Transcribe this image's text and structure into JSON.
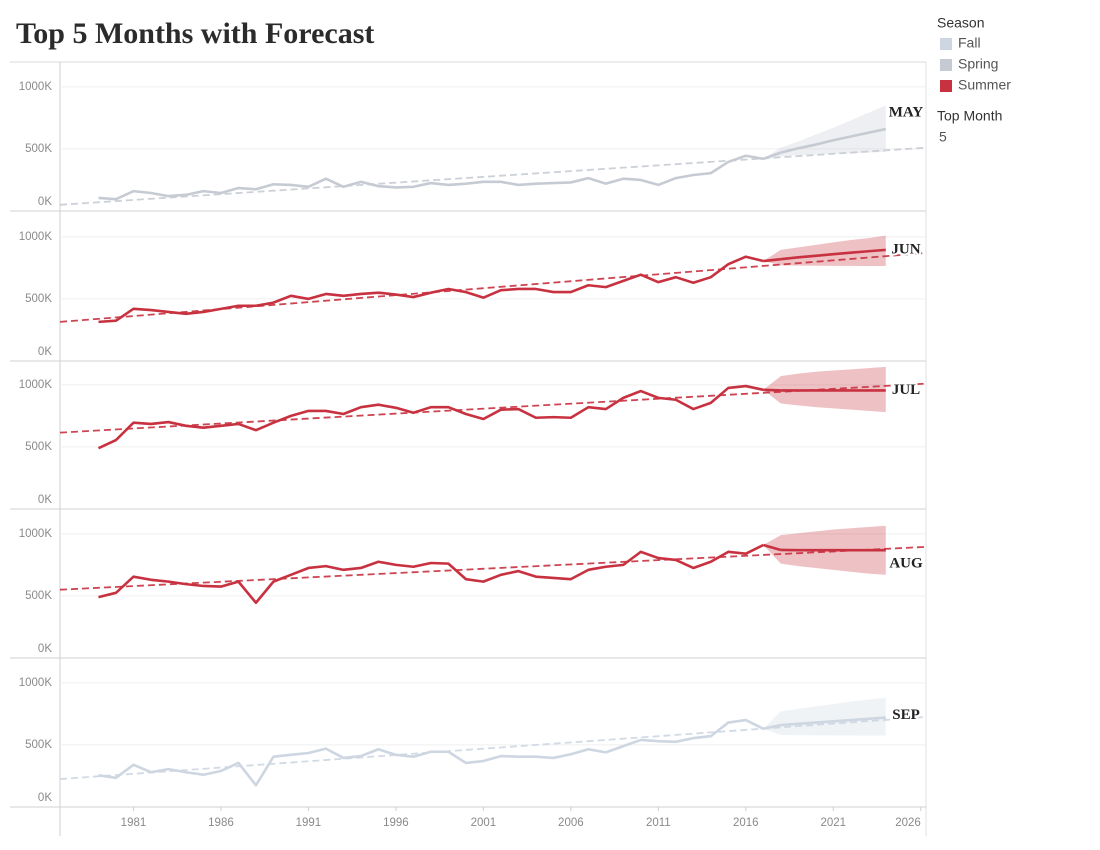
{
  "title": "Top 5 Months with Forecast",
  "legend": {
    "title": "Season",
    "items": [
      {
        "name": "Fall",
        "color": "#cdd6e1"
      },
      {
        "name": "Spring",
        "color": "#c6cbd3"
      },
      {
        "name": "Summer",
        "color": "#c8313f"
      }
    ]
  },
  "filter": {
    "title": "Top Month",
    "value": "5"
  },
  "chart_data": [
    {
      "type": "line",
      "label": "MAY",
      "color": "#c6cbd3",
      "x": [
        1979,
        1980,
        1981,
        1982,
        1983,
        1984,
        1985,
        1986,
        1987,
        1988,
        1989,
        1990,
        1991,
        1992,
        1993,
        1994,
        1995,
        1996,
        1997,
        1998,
        1999,
        2000,
        2001,
        2002,
        2003,
        2004,
        2005,
        2006,
        2007,
        2008,
        2009,
        2010,
        2011,
        2012,
        2013,
        2014,
        2015,
        2016,
        2017
      ],
      "values": [
        105000,
        95000,
        160000,
        145000,
        120000,
        130000,
        160000,
        145000,
        185000,
        175000,
        215000,
        210000,
        195000,
        260000,
        195000,
        235000,
        200000,
        190000,
        195000,
        225000,
        210000,
        220000,
        235000,
        235000,
        210000,
        220000,
        225000,
        230000,
        265000,
        220000,
        260000,
        250000,
        210000,
        265000,
        290000,
        305000,
        395000,
        445000,
        420000
      ],
      "forecast": {
        "x": [
          2018,
          2019,
          2020,
          2021,
          2022,
          2023,
          2024
        ],
        "values": [
          470000,
          505000,
          535000,
          570000,
          600000,
          630000,
          660000
        ],
        "upper": [
          510000,
          560000,
          615000,
          670000,
          730000,
          790000,
          850000
        ],
        "lower": [
          440000,
          450000,
          455000,
          460000,
          465000,
          470000,
          475000
        ]
      },
      "trend": {
        "x": [
          1976.8,
          2026.3
        ],
        "values": [
          50000,
          510000
        ]
      },
      "xlim": [
        1976.8,
        2026.3
      ],
      "ylim": [
        0,
        1200000
      ],
      "yticks": [
        {
          "value": 0,
          "label": "0K"
        },
        {
          "value": 500000,
          "label": "500K"
        },
        {
          "value": 1000000,
          "label": "1000K"
        }
      ]
    },
    {
      "type": "line",
      "label": "JUN",
      "color": "#c8313f",
      "x": [
        1979,
        1980,
        1981,
        1982,
        1983,
        1984,
        1985,
        1986,
        1987,
        1988,
        1989,
        1990,
        1991,
        1992,
        1993,
        1994,
        1995,
        1996,
        1997,
        1998,
        1999,
        2000,
        2001,
        2002,
        2003,
        2004,
        2005,
        2006,
        2007,
        2008,
        2009,
        2010,
        2011,
        2012,
        2013,
        2014,
        2015,
        2016,
        2017
      ],
      "values": [
        315000,
        325000,
        420000,
        410000,
        395000,
        380000,
        395000,
        420000,
        445000,
        445000,
        470000,
        525000,
        500000,
        540000,
        525000,
        540000,
        550000,
        535000,
        515000,
        550000,
        580000,
        555000,
        510000,
        570000,
        580000,
        580000,
        555000,
        555000,
        610000,
        595000,
        645000,
        695000,
        635000,
        675000,
        630000,
        675000,
        780000,
        840000,
        805000
      ],
      "forecast": {
        "x": [
          2018,
          2019,
          2020,
          2021,
          2022,
          2023,
          2024
        ],
        "values": [
          820000,
          835000,
          847000,
          860000,
          872000,
          884000,
          895000
        ],
        "upper": [
          895000,
          915000,
          935000,
          955000,
          975000,
          990000,
          1010000
        ],
        "lower": [
          770000,
          768000,
          767000,
          766000,
          766000,
          765000,
          765000
        ]
      },
      "trend": {
        "x": [
          1976.8,
          2026.3
        ],
        "values": [
          315000,
          870000
        ]
      },
      "xlim": [
        1976.8,
        2026.3
      ],
      "ylim": [
        0,
        1200000
      ],
      "yticks": [
        {
          "value": 0,
          "label": "0K"
        },
        {
          "value": 500000,
          "label": "500K"
        },
        {
          "value": 1000000,
          "label": "1000K"
        }
      ]
    },
    {
      "type": "line",
      "label": "JUL",
      "color": "#c8313f",
      "x": [
        1979,
        1980,
        1981,
        1982,
        1983,
        1984,
        1985,
        1986,
        1987,
        1988,
        1989,
        1990,
        1991,
        1992,
        1993,
        1994,
        1995,
        1996,
        1997,
        1998,
        1999,
        2000,
        2001,
        2002,
        2003,
        2004,
        2005,
        2006,
        2007,
        2008,
        2009,
        2010,
        2011,
        2012,
        2013,
        2014,
        2015,
        2016,
        2017
      ],
      "values": [
        490000,
        555000,
        695000,
        685000,
        700000,
        670000,
        655000,
        670000,
        685000,
        635000,
        695000,
        750000,
        790000,
        790000,
        765000,
        820000,
        840000,
        815000,
        775000,
        820000,
        820000,
        765000,
        725000,
        800000,
        805000,
        735000,
        740000,
        735000,
        820000,
        805000,
        895000,
        950000,
        895000,
        880000,
        805000,
        855000,
        975000,
        990000,
        960000
      ],
      "forecast": {
        "x": [
          2018,
          2019,
          2020,
          2021,
          2022,
          2023,
          2024
        ],
        "values": [
          955000,
          955000,
          955000,
          955000,
          955000,
          955000,
          955000
        ],
        "upper": [
          1070000,
          1090000,
          1105000,
          1115000,
          1125000,
          1135000,
          1145000
        ],
        "lower": [
          850000,
          835000,
          820000,
          810000,
          800000,
          790000,
          780000
        ]
      },
      "trend": {
        "x": [
          1976.8,
          2026.3
        ],
        "values": [
          615000,
          1010000
        ]
      },
      "xlim": [
        1976.8,
        2026.3
      ],
      "ylim": [
        0,
        1200000
      ],
      "yticks": [
        {
          "value": 0,
          "label": "0K"
        },
        {
          "value": 500000,
          "label": "500K"
        },
        {
          "value": 1000000,
          "label": "1000K"
        }
      ]
    },
    {
      "type": "line",
      "label": "AUG",
      "color": "#c8313f",
      "x": [
        1979,
        1980,
        1981,
        1982,
        1983,
        1984,
        1985,
        1986,
        1987,
        1988,
        1989,
        1990,
        1991,
        1992,
        1993,
        1994,
        1995,
        1996,
        1997,
        1998,
        1999,
        2000,
        2001,
        2002,
        2003,
        2004,
        2005,
        2006,
        2007,
        2008,
        2009,
        2010,
        2011,
        2012,
        2013,
        2014,
        2015,
        2016,
        2017
      ],
      "values": [
        490000,
        525000,
        655000,
        630000,
        615000,
        595000,
        580000,
        575000,
        615000,
        445000,
        615000,
        670000,
        725000,
        740000,
        710000,
        725000,
        775000,
        750000,
        735000,
        765000,
        760000,
        635000,
        615000,
        670000,
        700000,
        655000,
        645000,
        635000,
        710000,
        735000,
        750000,
        855000,
        805000,
        790000,
        725000,
        775000,
        855000,
        840000,
        910000
      ],
      "forecast": {
        "x": [
          2018,
          2019,
          2020,
          2021,
          2022,
          2023,
          2024
        ],
        "values": [
          870000,
          868000,
          868000,
          868000,
          868000,
          868000,
          868000
        ],
        "upper": [
          990000,
          1005000,
          1020000,
          1035000,
          1045000,
          1055000,
          1065000
        ],
        "lower": [
          760000,
          740000,
          725000,
          710000,
          695000,
          680000,
          670000
        ]
      },
      "trend": {
        "x": [
          1976.8,
          2026.3
        ],
        "values": [
          550000,
          895000
        ]
      },
      "xlim": [
        1976.8,
        2026.3
      ],
      "ylim": [
        0,
        1200000
      ],
      "yticks": [
        {
          "value": 0,
          "label": "0K"
        },
        {
          "value": 500000,
          "label": "500K"
        },
        {
          "value": 1000000,
          "label": "1000K"
        }
      ]
    },
    {
      "type": "line",
      "label": "SEP",
      "color": "#cdd6e1",
      "x": [
        1979,
        1980,
        1981,
        1982,
        1983,
        1984,
        1985,
        1986,
        1987,
        1988,
        1989,
        1990,
        1991,
        1992,
        1993,
        1994,
        1995,
        1996,
        1997,
        1998,
        1999,
        2000,
        2001,
        2002,
        2003,
        2004,
        2005,
        2006,
        2007,
        2008,
        2009,
        2010,
        2011,
        2012,
        2013,
        2014,
        2015,
        2016,
        2017
      ],
      "values": [
        255000,
        235000,
        340000,
        280000,
        305000,
        280000,
        260000,
        290000,
        355000,
        175000,
        405000,
        420000,
        435000,
        470000,
        395000,
        410000,
        465000,
        420000,
        405000,
        445000,
        445000,
        355000,
        370000,
        410000,
        405000,
        405000,
        395000,
        425000,
        465000,
        440000,
        490000,
        540000,
        530000,
        525000,
        555000,
        570000,
        680000,
        700000,
        630000
      ],
      "forecast": {
        "x": [
          2018,
          2019,
          2020,
          2021,
          2022,
          2023,
          2024
        ],
        "values": [
          660000,
          670000,
          680000,
          690000,
          700000,
          710000,
          720000
        ],
        "upper": [
          770000,
          790000,
          810000,
          830000,
          850000,
          865000,
          880000
        ],
        "lower": [
          580000,
          578000,
          577000,
          576000,
          576000,
          575000,
          575000
        ]
      },
      "trend": {
        "x": [
          1976.8,
          2026.3
        ],
        "values": [
          225000,
          725000
        ]
      },
      "xlim": [
        1976.8,
        2026.3
      ],
      "ylim": [
        0,
        1200000
      ],
      "yticks": [
        {
          "value": 0,
          "label": "0K"
        },
        {
          "value": 500000,
          "label": "500K"
        },
        {
          "value": 1000000,
          "label": "1000K"
        }
      ],
      "xticks": [
        1981,
        1986,
        1991,
        1996,
        2001,
        2006,
        2011,
        2016,
        2021,
        2026
      ]
    }
  ]
}
